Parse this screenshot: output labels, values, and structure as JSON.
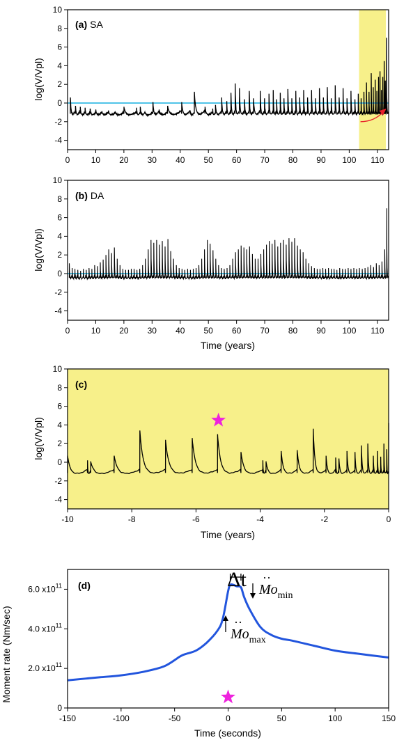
{
  "colors": {
    "highlight": "#f7f08a",
    "reference_line": "#4fc3e8",
    "series": "#000000",
    "moment_curve": "#2255dd",
    "star": "#ee22dd",
    "arrow": "#e8202a"
  },
  "chart_data": [
    {
      "type": "line",
      "panel_label": "(a)",
      "panel_name": "SA",
      "ylabel": "log(V/Vpl)",
      "xlabel": "",
      "xlim": [
        0,
        114
      ],
      "ylim": [
        -5,
        10
      ],
      "xticks": [
        0,
        10,
        20,
        30,
        40,
        50,
        60,
        70,
        80,
        90,
        100,
        110
      ],
      "xticklabels": [
        "0",
        "10",
        "20",
        "30",
        "40",
        "50",
        "60",
        "70",
        "80",
        "90",
        "100",
        "110"
      ],
      "yticks": [
        -4,
        -2,
        0,
        2,
        4,
        6,
        8,
        10
      ],
      "yticklabels": [
        "-4",
        "-2",
        "0",
        "2",
        "4",
        "6",
        "8",
        "10"
      ],
      "reference_line_y": 0,
      "highlight_x": [
        103.5,
        113
      ],
      "baseline": -1.3,
      "events": [
        {
          "x": 1,
          "y": 0.6
        },
        {
          "x": 2.8,
          "y": -0.3
        },
        {
          "x": 4.5,
          "y": -0.4
        },
        {
          "x": 6.2,
          "y": -0.5
        },
        {
          "x": 8,
          "y": -0.6
        },
        {
          "x": 10,
          "y": -0.7
        },
        {
          "x": 12.2,
          "y": -0.9
        },
        {
          "x": 14.5,
          "y": -0.8
        },
        {
          "x": 17,
          "y": -1.0
        },
        {
          "x": 20,
          "y": -0.4
        },
        {
          "x": 24.5,
          "y": -0.5
        },
        {
          "x": 25.8,
          "y": -0.4
        },
        {
          "x": 27.5,
          "y": -1.0
        },
        {
          "x": 30.3,
          "y": 0.1
        },
        {
          "x": 32.5,
          "y": -0.7
        },
        {
          "x": 35.5,
          "y": -0.3
        },
        {
          "x": 40.5,
          "y": 0.1
        },
        {
          "x": 43.5,
          "y": -0.8
        },
        {
          "x": 45,
          "y": 1.2
        },
        {
          "x": 48.8,
          "y": -0.4
        },
        {
          "x": 51.5,
          "y": -0.6
        },
        {
          "x": 52.5,
          "y": -0.2
        },
        {
          "x": 54.7,
          "y": 0.6
        },
        {
          "x": 56.5,
          "y": 0.2
        },
        {
          "x": 58,
          "y": 1.1
        },
        {
          "x": 59.5,
          "y": 2.1
        },
        {
          "x": 61,
          "y": 1.6
        },
        {
          "x": 62.8,
          "y": 0.4
        },
        {
          "x": 64.5,
          "y": 1.3
        },
        {
          "x": 66,
          "y": 0.5
        },
        {
          "x": 68.4,
          "y": 1.3
        },
        {
          "x": 69.9,
          "y": 0.5
        },
        {
          "x": 71.5,
          "y": 1.0
        },
        {
          "x": 73,
          "y": 1.4
        },
        {
          "x": 74.2,
          "y": 0.4
        },
        {
          "x": 75.5,
          "y": 1.1
        },
        {
          "x": 76.8,
          "y": 0.5
        },
        {
          "x": 78.2,
          "y": 1.5
        },
        {
          "x": 79.6,
          "y": 0.5
        },
        {
          "x": 81,
          "y": 1.3
        },
        {
          "x": 82.4,
          "y": 0.6
        },
        {
          "x": 83.8,
          "y": 1.4
        },
        {
          "x": 85.2,
          "y": 0.6
        },
        {
          "x": 86.6,
          "y": 1.4
        },
        {
          "x": 88,
          "y": 0.5
        },
        {
          "x": 89.4,
          "y": 1.6
        },
        {
          "x": 90.8,
          "y": 0.6
        },
        {
          "x": 92.2,
          "y": 1.7
        },
        {
          "x": 93.6,
          "y": 0.5
        },
        {
          "x": 95,
          "y": 1.9
        },
        {
          "x": 96.4,
          "y": 0.6
        },
        {
          "x": 97.8,
          "y": 1.6
        },
        {
          "x": 99.2,
          "y": 0.5
        },
        {
          "x": 100.6,
          "y": 1.3
        },
        {
          "x": 102,
          "y": 0.4
        },
        {
          "x": 103.2,
          "y": 1.0
        },
        {
          "x": 104.2,
          "y": 0.5
        },
        {
          "x": 105.2,
          "y": 1.2
        },
        {
          "x": 106.1,
          "y": 2.2
        },
        {
          "x": 107,
          "y": 1.2
        },
        {
          "x": 107.8,
          "y": 3.2
        },
        {
          "x": 108.5,
          "y": 1.7
        },
        {
          "x": 109.2,
          "y": 2.5
        },
        {
          "x": 109.8,
          "y": 1.3
        },
        {
          "x": 110.4,
          "y": 2.8
        },
        {
          "x": 110.9,
          "y": 3.4
        },
        {
          "x": 111.4,
          "y": 1.4
        },
        {
          "x": 111.9,
          "y": 2.8
        },
        {
          "x": 112.4,
          "y": 4.5
        },
        {
          "x": 112.8,
          "y": 2.4
        },
        {
          "x": 113.2,
          "y": 7.0
        }
      ]
    },
    {
      "type": "line",
      "panel_label": "(b)",
      "panel_name": "DA",
      "ylabel": "log(V/Vpl)",
      "xlabel": "Time (years)",
      "xlim": [
        0,
        114
      ],
      "ylim": [
        -5,
        10
      ],
      "xticks": [
        0,
        10,
        20,
        30,
        40,
        50,
        60,
        70,
        80,
        90,
        100,
        110
      ],
      "xticklabels": [
        "0",
        "10",
        "20",
        "30",
        "40",
        "50",
        "60",
        "70",
        "80",
        "90",
        "100",
        "110"
      ],
      "yticks": [
        -4,
        -2,
        0,
        2,
        4,
        6,
        8,
        10
      ],
      "yticklabels": [
        "-4",
        "-2",
        "0",
        "2",
        "4",
        "6",
        "8",
        "10"
      ],
      "reference_line_y": 0,
      "baseline": -0.6,
      "events": [
        {
          "x": 0.6,
          "y": 1.1
        },
        {
          "x": 1.6,
          "y": 0.6
        },
        {
          "x": 2.6,
          "y": 0.5
        },
        {
          "x": 3.6,
          "y": 0.4
        },
        {
          "x": 4.6,
          "y": 0.3
        },
        {
          "x": 5.6,
          "y": 0.5
        },
        {
          "x": 6.6,
          "y": 0.4
        },
        {
          "x": 7.6,
          "y": 0.6
        },
        {
          "x": 8.6,
          "y": 0.5
        },
        {
          "x": 9.6,
          "y": 0.9
        },
        {
          "x": 10.6,
          "y": 0.8
        },
        {
          "x": 11.6,
          "y": 1.2
        },
        {
          "x": 12.6,
          "y": 1.5
        },
        {
          "x": 13.6,
          "y": 2.0
        },
        {
          "x": 14.6,
          "y": 2.6
        },
        {
          "x": 15.6,
          "y": 2.2
        },
        {
          "x": 16.6,
          "y": 2.8
        },
        {
          "x": 17.6,
          "y": 1.6
        },
        {
          "x": 18.6,
          "y": 0.9
        },
        {
          "x": 19.6,
          "y": 0.5
        },
        {
          "x": 20.6,
          "y": 0.4
        },
        {
          "x": 21.6,
          "y": 0.4
        },
        {
          "x": 22.6,
          "y": 0.5
        },
        {
          "x": 23.6,
          "y": 0.5
        },
        {
          "x": 24.6,
          "y": 0.4
        },
        {
          "x": 25.6,
          "y": 0.5
        },
        {
          "x": 26.6,
          "y": 0.9
        },
        {
          "x": 27.6,
          "y": 1.6
        },
        {
          "x": 28.6,
          "y": 2.6
        },
        {
          "x": 29.6,
          "y": 3.6
        },
        {
          "x": 30.6,
          "y": 3.3
        },
        {
          "x": 31.6,
          "y": 3.6
        },
        {
          "x": 32.6,
          "y": 3.1
        },
        {
          "x": 33.6,
          "y": 3.5
        },
        {
          "x": 34.6,
          "y": 2.9
        },
        {
          "x": 35.6,
          "y": 3.7
        },
        {
          "x": 36.6,
          "y": 2.4
        },
        {
          "x": 37.6,
          "y": 1.6
        },
        {
          "x": 38.6,
          "y": 0.9
        },
        {
          "x": 39.6,
          "y": 0.6
        },
        {
          "x": 40.6,
          "y": 0.5
        },
        {
          "x": 41.6,
          "y": 0.4
        },
        {
          "x": 42.6,
          "y": 0.5
        },
        {
          "x": 43.6,
          "y": 0.4
        },
        {
          "x": 44.6,
          "y": 0.5
        },
        {
          "x": 45.6,
          "y": 0.6
        },
        {
          "x": 46.6,
          "y": 0.9
        },
        {
          "x": 47.6,
          "y": 1.6
        },
        {
          "x": 48.6,
          "y": 2.6
        },
        {
          "x": 49.6,
          "y": 3.6
        },
        {
          "x": 50.6,
          "y": 3.2
        },
        {
          "x": 51.6,
          "y": 2.5
        },
        {
          "x": 52.6,
          "y": 1.6
        },
        {
          "x": 53.6,
          "y": 0.9
        },
        {
          "x": 54.6,
          "y": 0.6
        },
        {
          "x": 55.6,
          "y": 0.5
        },
        {
          "x": 56.6,
          "y": 0.6
        },
        {
          "x": 57.6,
          "y": 0.9
        },
        {
          "x": 58.6,
          "y": 1.6
        },
        {
          "x": 59.6,
          "y": 2.3
        },
        {
          "x": 60.6,
          "y": 2.6
        },
        {
          "x": 61.6,
          "y": 3.0
        },
        {
          "x": 62.6,
          "y": 2.8
        },
        {
          "x": 63.6,
          "y": 2.6
        },
        {
          "x": 64.6,
          "y": 2.9
        },
        {
          "x": 65.6,
          "y": 2.1
        },
        {
          "x": 66.6,
          "y": 1.6
        },
        {
          "x": 67.6,
          "y": 1.6
        },
        {
          "x": 68.6,
          "y": 2.1
        },
        {
          "x": 69.6,
          "y": 2.6
        },
        {
          "x": 70.6,
          "y": 3.1
        },
        {
          "x": 71.6,
          "y": 3.5
        },
        {
          "x": 72.6,
          "y": 3.2
        },
        {
          "x": 73.6,
          "y": 3.6
        },
        {
          "x": 74.6,
          "y": 2.9
        },
        {
          "x": 75.6,
          "y": 3.3
        },
        {
          "x": 76.6,
          "y": 3.6
        },
        {
          "x": 77.6,
          "y": 3.1
        },
        {
          "x": 78.6,
          "y": 3.8
        },
        {
          "x": 79.6,
          "y": 3.4
        },
        {
          "x": 80.6,
          "y": 3.8
        },
        {
          "x": 81.6,
          "y": 3.0
        },
        {
          "x": 82.6,
          "y": 2.6
        },
        {
          "x": 83.6,
          "y": 2.3
        },
        {
          "x": 84.6,
          "y": 1.6
        },
        {
          "x": 85.6,
          "y": 1.1
        },
        {
          "x": 86.6,
          "y": 0.8
        },
        {
          "x": 87.6,
          "y": 0.6
        },
        {
          "x": 88.6,
          "y": 0.5
        },
        {
          "x": 89.6,
          "y": 0.5
        },
        {
          "x": 90.6,
          "y": 0.6
        },
        {
          "x": 91.6,
          "y": 0.5
        },
        {
          "x": 92.6,
          "y": 0.6
        },
        {
          "x": 93.6,
          "y": 0.5
        },
        {
          "x": 94.6,
          "y": 0.5
        },
        {
          "x": 95.6,
          "y": 0.4
        },
        {
          "x": 96.6,
          "y": 0.6
        },
        {
          "x": 97.6,
          "y": 0.5
        },
        {
          "x": 98.6,
          "y": 0.5
        },
        {
          "x": 99.6,
          "y": 0.6
        },
        {
          "x": 100.6,
          "y": 0.5
        },
        {
          "x": 101.6,
          "y": 0.6
        },
        {
          "x": 102.6,
          "y": 0.5
        },
        {
          "x": 103.6,
          "y": 0.6
        },
        {
          "x": 104.6,
          "y": 0.5
        },
        {
          "x": 105.6,
          "y": 0.6
        },
        {
          "x": 106.6,
          "y": 0.7
        },
        {
          "x": 107.6,
          "y": 0.9
        },
        {
          "x": 108.6,
          "y": 0.7
        },
        {
          "x": 109.6,
          "y": 1.1
        },
        {
          "x": 110.6,
          "y": 0.9
        },
        {
          "x": 111.6,
          "y": 1.3
        },
        {
          "x": 112.6,
          "y": 2.6
        },
        {
          "x": 113.3,
          "y": 7.0
        }
      ]
    },
    {
      "type": "line",
      "panel_label": "(c)",
      "ylabel": "log(V/Vpl)",
      "xlabel": "Time (years)",
      "xlim": [
        -10,
        0
      ],
      "ylim": [
        -5,
        10
      ],
      "xticks": [
        -10,
        -8,
        -6,
        -4,
        -2,
        0
      ],
      "xticklabels": [
        "-10",
        "-8",
        "-6",
        "-4",
        "-2",
        "0"
      ],
      "yticks": [
        -4,
        -2,
        0,
        2,
        4,
        6,
        8,
        10
      ],
      "yticklabels": [
        "-4",
        "-2",
        "0",
        "2",
        "4",
        "6",
        "8",
        "10"
      ],
      "background": "highlight",
      "star": {
        "x": -5.3,
        "y": 4.5
      },
      "baseline": -1.3,
      "events": [
        {
          "x": -10,
          "y": 0.7
        },
        {
          "x": -9.38,
          "y": 0.2
        },
        {
          "x": -9.28,
          "y": 0.1
        },
        {
          "x": -8.55,
          "y": 0.7
        },
        {
          "x": -7.75,
          "y": 3.4
        },
        {
          "x": -6.95,
          "y": 2.4
        },
        {
          "x": -6.12,
          "y": 2.6
        },
        {
          "x": -5.33,
          "y": 3.0
        },
        {
          "x": -4.6,
          "y": 1.1
        },
        {
          "x": -3.92,
          "y": 0.2
        },
        {
          "x": -3.82,
          "y": 0.1
        },
        {
          "x": -3.35,
          "y": 1.2
        },
        {
          "x": -2.85,
          "y": 1.3
        },
        {
          "x": -2.35,
          "y": 3.6
        },
        {
          "x": -1.95,
          "y": 0.7
        },
        {
          "x": -1.65,
          "y": 0.5
        },
        {
          "x": -1.55,
          "y": 0.4
        },
        {
          "x": -1.3,
          "y": 1.2
        },
        {
          "x": -1.05,
          "y": 1.1
        },
        {
          "x": -0.85,
          "y": 1.8
        },
        {
          "x": -0.65,
          "y": 2.0
        },
        {
          "x": -0.48,
          "y": 0.7
        },
        {
          "x": -0.35,
          "y": 1.2
        },
        {
          "x": -0.25,
          "y": 0.6
        },
        {
          "x": -0.15,
          "y": 2.0
        },
        {
          "x": -0.06,
          "y": 1.4
        },
        {
          "x": 0,
          "y": 4.2
        }
      ]
    },
    {
      "type": "line",
      "panel_label": "(d)",
      "ylabel": "Moment rate (Nm/sec)",
      "xlabel": "Time (seconds)",
      "xlim": [
        -150,
        150
      ],
      "ylim": [
        0,
        700000000000.0
      ],
      "xticks": [
        -150,
        -100,
        -50,
        0,
        50,
        100,
        150
      ],
      "xticklabels": [
        "-150",
        "-100",
        "-50",
        "0",
        "50",
        "100",
        "150"
      ],
      "yticks": [
        0,
        200000000000.0,
        400000000000.0,
        600000000000.0
      ],
      "yticklabels": [
        {
          "mantissa": "0",
          "exponent": ""
        },
        {
          "mantissa": "2.0 x10",
          "exponent": "11"
        },
        {
          "mantissa": "4.0 x10",
          "exponent": "11"
        },
        {
          "mantissa": "6.0 x10",
          "exponent": "11"
        }
      ],
      "star": {
        "x": 0,
        "y": 55000000000.0
      },
      "series": [
        {
          "x": [
            -150,
            -120,
            -100,
            -80,
            -60,
            -45,
            -40,
            -30,
            -20,
            -10,
            -5,
            0,
            2,
            5,
            8,
            12,
            15,
            20,
            30,
            40,
            50,
            60,
            80,
            100,
            120,
            150
          ],
          "y": [
            140000000000.0,
            155000000000.0,
            165000000000.0,
            182000000000.0,
            210000000000.0,
            260000000000.0,
            272000000000.0,
            290000000000.0,
            330000000000.0,
            390000000000.0,
            450000000000.0,
            590000000000.0,
            622000000000.0,
            622000000000.0,
            615000000000.0,
            610000000000.0,
            560000000000.0,
            500000000000.0,
            410000000000.0,
            370000000000.0,
            350000000000.0,
            340000000000.0,
            315000000000.0,
            290000000000.0,
            275000000000.0,
            255000000000.0
          ]
        }
      ],
      "annotations": {
        "delta_t": "Δt",
        "mo_symbol": "Mo",
        "mo_min_sub": "min",
        "mo_max_sub": "max",
        "delta_t_x": [
          2,
          12
        ]
      }
    }
  ]
}
